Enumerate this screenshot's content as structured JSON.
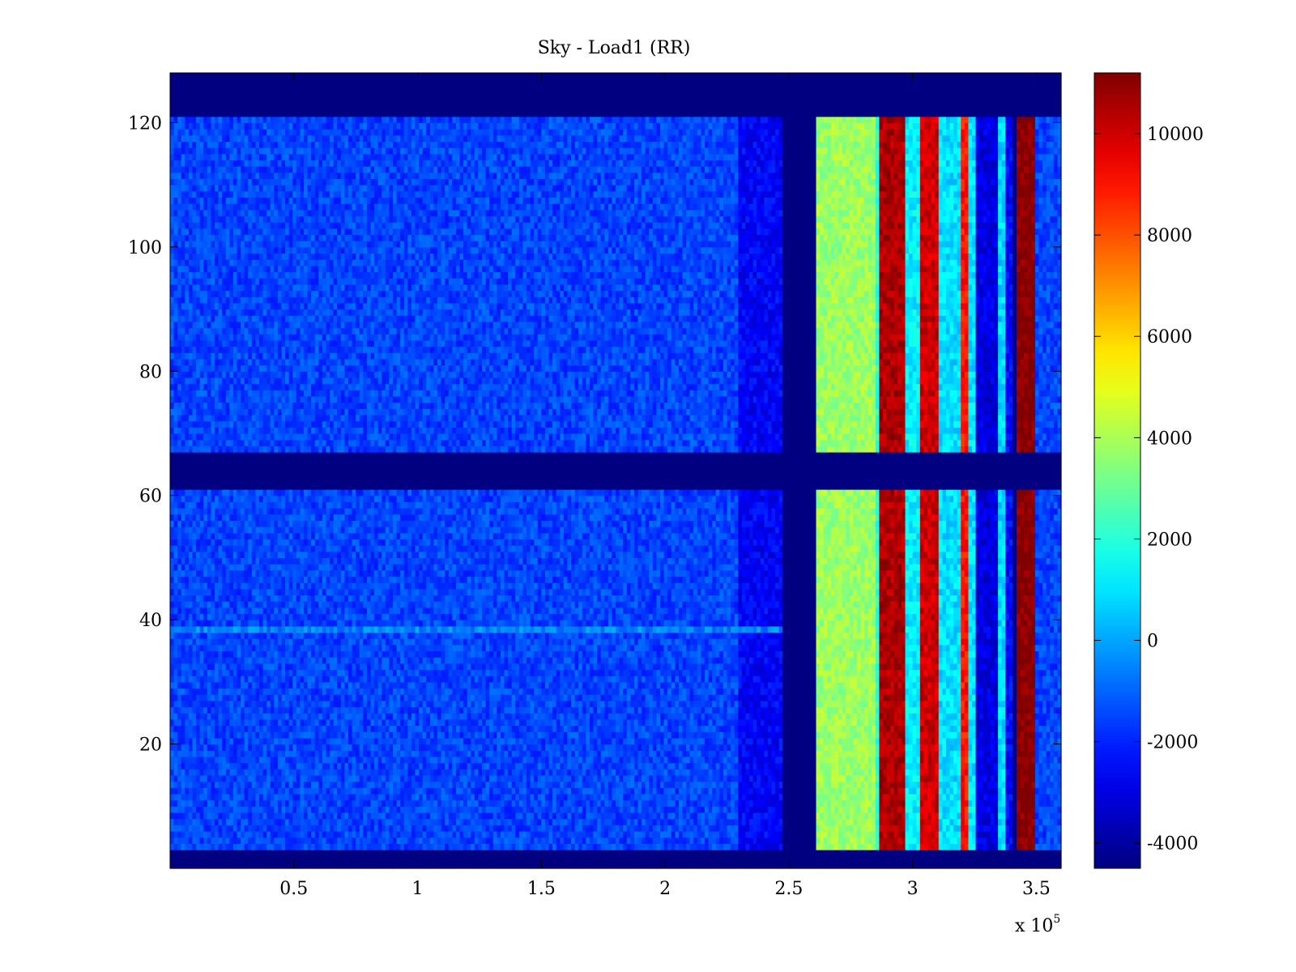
{
  "chart_data": {
    "type": "heatmap",
    "title": "Sky - Load1 (RR)",
    "xlabel": "",
    "ylabel": "",
    "x_multiplier_label": {
      "base": "x 10",
      "exponent": "5"
    },
    "xlim": [
      0,
      3.6
    ],
    "ylim": [
      0,
      128
    ],
    "x_ticks": [
      {
        "value": 0.5,
        "label": "0.5"
      },
      {
        "value": 1,
        "label": "1"
      },
      {
        "value": 1.5,
        "label": "1.5"
      },
      {
        "value": 2,
        "label": "2"
      },
      {
        "value": 2.5,
        "label": "2.5"
      },
      {
        "value": 3,
        "label": "3"
      },
      {
        "value": 3.5,
        "label": "3.5"
      }
    ],
    "y_ticks": [
      {
        "value": 20,
        "label": "20"
      },
      {
        "value": 40,
        "label": "40"
      },
      {
        "value": 60,
        "label": "60"
      },
      {
        "value": 80,
        "label": "80"
      },
      {
        "value": 100,
        "label": "100"
      },
      {
        "value": 120,
        "label": "120"
      }
    ],
    "colormap": "jet",
    "clim": [
      -4500,
      11200
    ],
    "colorbar_ticks": [
      {
        "value": 10000,
        "label": "10000"
      },
      {
        "value": 8000,
        "label": "8000"
      },
      {
        "value": 6000,
        "label": "6000"
      },
      {
        "value": 4000,
        "label": "4000"
      },
      {
        "value": 2000,
        "label": "2000"
      },
      {
        "value": 0,
        "label": "0"
      },
      {
        "value": -2000,
        "label": "-2000"
      },
      {
        "value": -4000,
        "label": "-4000"
      }
    ],
    "colorbar_placement": "right",
    "grid": false,
    "masked_value": -4500,
    "masked_row_bands": [
      [
        0,
        3
      ],
      [
        61,
        67
      ],
      [
        121,
        128
      ]
    ],
    "masked_column_bands": [
      [
        2.47,
        2.61
      ],
      [
        3.41,
        3.42
      ]
    ],
    "background_value": -1500,
    "column_features": [
      {
        "x_range": [
          2.3,
          2.47
        ],
        "value": -2600
      },
      {
        "x_range": [
          2.61,
          2.85
        ],
        "value": 3800
      },
      {
        "x_range": [
          2.85,
          2.87
        ],
        "value": 2000
      },
      {
        "x_range": [
          2.87,
          2.97
        ],
        "value": 10500
      },
      {
        "x_range": [
          2.97,
          3.03
        ],
        "value": 1200
      },
      {
        "x_range": [
          3.03,
          3.1
        ],
        "value": 10000
      },
      {
        "x_range": [
          3.1,
          3.19
        ],
        "value": 900
      },
      {
        "x_range": [
          3.19,
          3.23
        ],
        "value": 9000
      },
      {
        "x_range": [
          3.23,
          3.25
        ],
        "value": 1000
      },
      {
        "x_range": [
          3.25,
          3.34
        ],
        "value": -3000
      },
      {
        "x_range": [
          3.34,
          3.37
        ],
        "value": 800
      },
      {
        "x_range": [
          3.37,
          3.41
        ],
        "value": -2500
      },
      {
        "x_range": [
          3.42,
          3.5
        ],
        "value": 11200
      },
      {
        "x_range": [
          3.5,
          3.6
        ],
        "value": -1500
      }
    ],
    "row_features": [
      {
        "y_range": [
          38,
          39
        ],
        "value": -500,
        "x_range": [
          0,
          2.47
        ]
      }
    ]
  }
}
